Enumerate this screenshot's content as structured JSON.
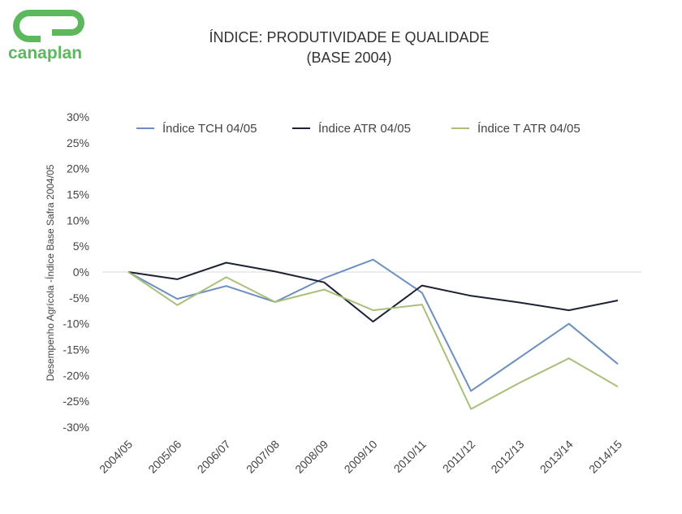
{
  "logo": {
    "text": "canaplan",
    "color": "#5cb85c"
  },
  "chart_data": {
    "type": "line",
    "title": "ÍNDICE: PRODUTIVIDADE E QUALIDADE",
    "subtitle": "(BASE 2004)",
    "xlabel": "",
    "ylabel": "Desempenho Agrícola -Índice Base Safra 2004/05",
    "categories": [
      "2004/05",
      "2005/06",
      "2006/07",
      "2007/08",
      "2008/09",
      "2009/10",
      "2010/11",
      "2011/12",
      "2012/13",
      "2013/14",
      "2014/15"
    ],
    "ylim": [
      -30,
      30
    ],
    "yticks": [
      30,
      25,
      20,
      15,
      10,
      5,
      0,
      -5,
      -10,
      -15,
      -20,
      -25,
      -30
    ],
    "ytick_labels": [
      "30%",
      "25%",
      "20%",
      "15%",
      "10%",
      "5%",
      "0%",
      "-5%",
      "-10%",
      "-15%",
      "-20%",
      "-25%",
      "-30%"
    ],
    "grid": "zero line only",
    "legend_position": "top",
    "series": [
      {
        "name": "Índice TCH 04/05",
        "color": "#6b8fbf",
        "values": [
          0,
          -5.2,
          -2.7,
          -5.8,
          -1.2,
          2.4,
          -4.0,
          -23.0,
          -16.5,
          -10.0,
          -17.8
        ]
      },
      {
        "name": "Índice ATR 04/05",
        "color": "#1c2233",
        "values": [
          0,
          -1.4,
          1.8,
          0.1,
          -2.0,
          -9.6,
          -2.6,
          -4.6,
          -5.9,
          -7.4,
          -5.5
        ]
      },
      {
        "name": "Índice T ATR 04/05",
        "color": "#a9c07a",
        "values": [
          0,
          -6.4,
          -1.0,
          -5.8,
          -3.4,
          -7.4,
          -6.3,
          -26.5,
          -21.4,
          -16.7,
          -22.2
        ]
      }
    ]
  }
}
